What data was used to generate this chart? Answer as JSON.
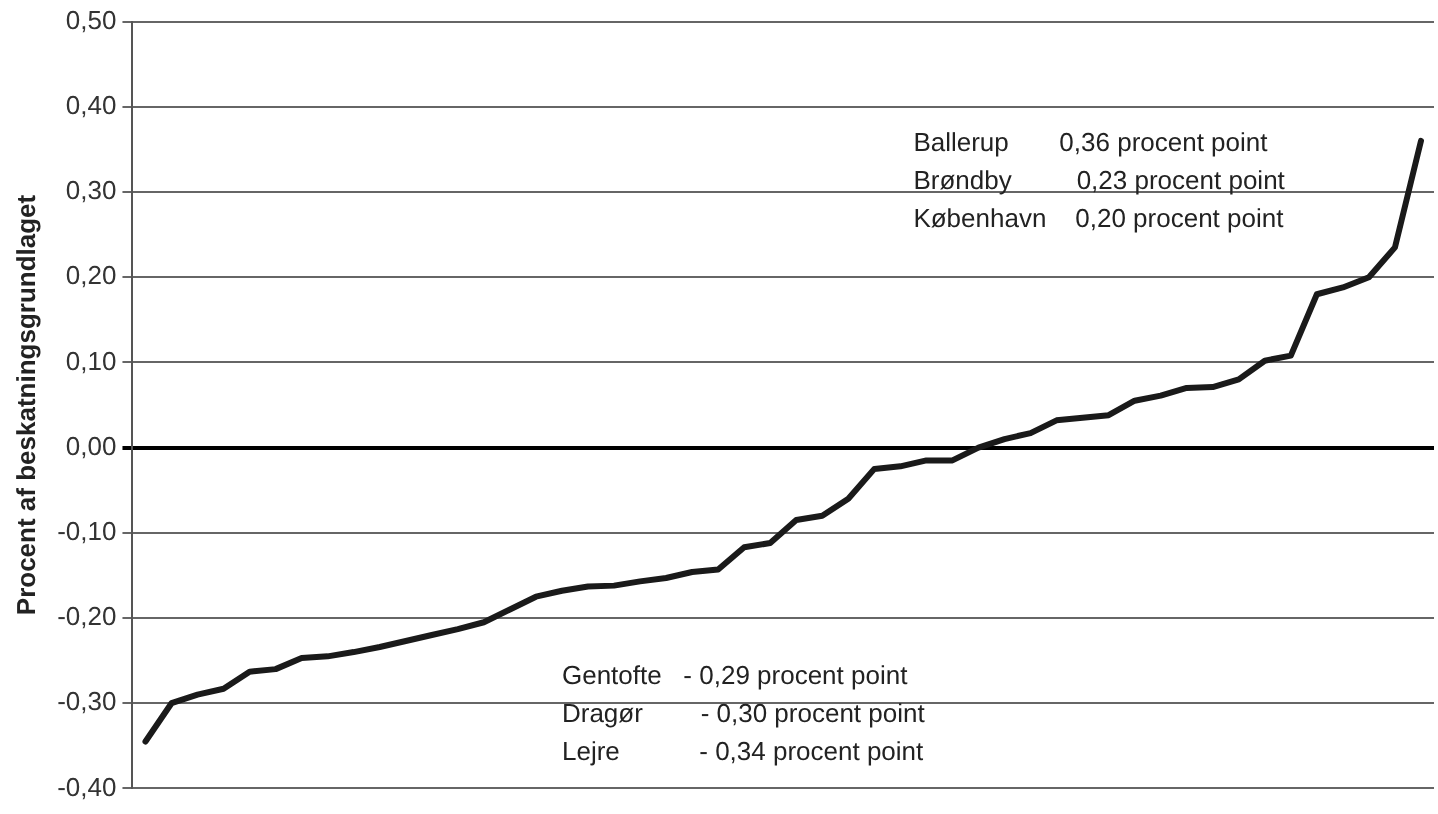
{
  "chart_data": {
    "type": "line",
    "ylabel": "Procent af beskatningsgrundlaget",
    "categories": [
      null,
      null,
      null,
      null,
      null,
      null,
      null,
      null,
      null,
      null,
      null,
      null,
      null,
      null,
      null,
      null,
      null,
      null,
      null,
      null,
      null,
      null,
      null,
      null,
      null,
      null,
      null,
      null,
      null,
      null,
      null,
      null,
      null,
      null,
      null,
      null,
      null,
      null,
      null,
      null,
      null,
      null,
      null,
      null,
      null,
      null,
      null,
      null,
      null,
      null
    ],
    "series": [
      {
        "color": "#1a1a1a",
        "values": [
          -0.345,
          -0.3,
          -0.29,
          -0.283,
          -0.263,
          -0.26,
          -0.247,
          -0.245,
          -0.24,
          -0.234,
          -0.227,
          -0.22,
          -0.213,
          -0.205,
          -0.19,
          -0.175,
          -0.168,
          -0.163,
          -0.162,
          -0.157,
          -0.153,
          -0.146,
          -0.143,
          -0.117,
          -0.112,
          -0.085,
          -0.08,
          -0.06,
          -0.025,
          -0.022,
          -0.015,
          -0.015,
          0.0,
          0.01,
          0.017,
          0.032,
          0.035,
          0.038,
          0.055,
          0.061,
          0.07,
          0.071,
          0.08,
          0.102,
          0.108,
          0.18,
          0.188,
          0.2,
          0.235,
          0.36
        ]
      }
    ],
    "ylim": [
      -0.4,
      0.5
    ],
    "yticks": [
      {
        "value": -0.4,
        "label": "-0,40"
      },
      {
        "value": -0.3,
        "label": "-0,30"
      },
      {
        "value": -0.2,
        "label": "-0,20"
      },
      {
        "value": -0.1,
        "label": "-0,10"
      },
      {
        "value": 0,
        "label": "0,00"
      },
      {
        "value": 0.1,
        "label": "0,10"
      },
      {
        "value": 0.2,
        "label": "0,20"
      },
      {
        "value": 0.3,
        "label": "0,30"
      },
      {
        "value": 0.4,
        "label": "0,40"
      },
      {
        "value": 0.5,
        "label": "0,50"
      }
    ],
    "grid": "y",
    "legend": false,
    "marker": "none",
    "line_style": "solid",
    "tick_labels": "y",
    "annotations": [
      "Ballerup       0,36 procent point",
      "Brøndby         0,23 procent point",
      "København    0,20 procent point",
      "Gentofte   - 0,29 procent point",
      "Dragør        - 0,30 procent point",
      "Lejre           - 0,34 procent point"
    ]
  }
}
